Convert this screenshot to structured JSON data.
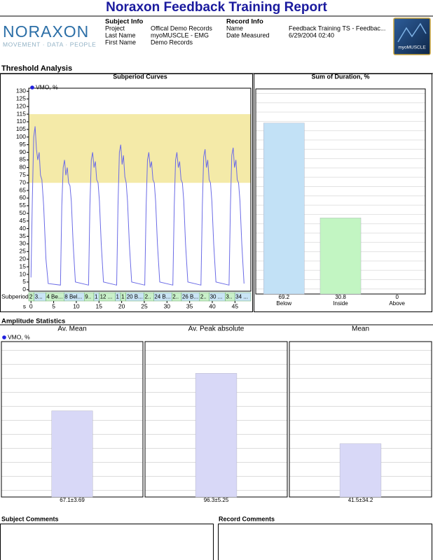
{
  "header": {
    "title": "Noraxon Feedback Training Report",
    "logo": "NORAXON",
    "tagline": "MOVEMENT · DATA · PEOPLE",
    "badge": "myoMUSCLE"
  },
  "subject_info": {
    "title": "Subject Info",
    "rows": [
      [
        "Project",
        "Offical Demo Records"
      ],
      [
        "Last Name",
        "myoMUSCLE - EMG"
      ],
      [
        "First Name",
        "Demo Records"
      ]
    ]
  },
  "record_info": {
    "title": "Record Info",
    "rows": [
      [
        "Name",
        "Feedback Training TS -  Feedbac..."
      ],
      [
        "Date Measured",
        "6/29/2004 02:40"
      ]
    ]
  },
  "sections": {
    "threshold": "Threshold Analysis",
    "amplitude": "Amplitude Statistics"
  },
  "comments": [
    "Subject Comments",
    "Record Comments"
  ],
  "chart_data": [
    {
      "type": "line",
      "title": "Subperiod Curves",
      "x": [
        0,
        0.3,
        0.6,
        0.9,
        1.2,
        1.5,
        1.8,
        2.1,
        2.4,
        2.8,
        3.3,
        3.8,
        6.5,
        6.8,
        7.1,
        7.4,
        7.7,
        8.0,
        8.3,
        8.6,
        8.9,
        9.3,
        9.8,
        12.7,
        13.0,
        13.3,
        13.6,
        13.9,
        14.2,
        14.5,
        14.8,
        15.1,
        15.5,
        16.0,
        18.9,
        19.2,
        19.5,
        19.8,
        20.1,
        20.4,
        20.7,
        21.0,
        21.3,
        21.7,
        22.2,
        25.1,
        25.4,
        25.7,
        26.0,
        26.3,
        26.6,
        26.9,
        27.2,
        27.5,
        27.9,
        28.4,
        31.3,
        31.6,
        31.9,
        32.2,
        32.5,
        32.8,
        33.1,
        33.4,
        33.7,
        34.1,
        34.6,
        37.5,
        37.8,
        38.1,
        38.4,
        38.7,
        39.0,
        39.3,
        39.6,
        39.9,
        40.3,
        40.8,
        43.7,
        44.0,
        44.3,
        44.6,
        44.9,
        45.2,
        45.5,
        45.8,
        46.1,
        46.5,
        47.0
      ],
      "series": [
        {
          "name": "VMO, %",
          "color": "#6b6be6",
          "values": [
            8,
            60,
            100,
            107,
            92,
            85,
            90,
            75,
            72,
            55,
            20,
            4,
            3,
            55,
            80,
            85,
            75,
            80,
            70,
            68,
            58,
            30,
            5,
            3,
            55,
            85,
            90,
            80,
            84,
            72,
            70,
            58,
            30,
            5,
            3,
            55,
            90,
            95,
            82,
            88,
            74,
            70,
            58,
            30,
            5,
            3,
            55,
            85,
            90,
            80,
            84,
            72,
            70,
            58,
            30,
            5,
            3,
            55,
            85,
            90,
            80,
            84,
            72,
            70,
            58,
            30,
            5,
            3,
            55,
            87,
            92,
            80,
            85,
            72,
            70,
            58,
            30,
            5,
            3,
            55,
            88,
            93,
            80,
            85,
            72,
            70,
            58,
            30,
            4
          ]
        }
      ],
      "legend_color": "#2020dd",
      "xlim": [
        -0.5,
        48.5
      ],
      "ylim": [
        -1,
        132
      ],
      "xticks": [
        0,
        5,
        10,
        15,
        20,
        25,
        30,
        35,
        40,
        45
      ],
      "yticks": [
        0,
        5,
        10,
        15,
        20,
        25,
        30,
        35,
        40,
        45,
        50,
        55,
        60,
        65,
        70,
        75,
        80,
        85,
        90,
        95,
        100,
        105,
        110,
        115,
        120,
        125,
        130
      ],
      "xlabel": "s",
      "band": [
        70,
        115
      ],
      "band_color": "#f4eaa8",
      "subperiods_label": "Subperiods",
      "subperiods": [
        "2",
        "3...",
        "4 Be...",
        "8 Bel...",
        "9..",
        "1",
        "12 ...",
        "1",
        "1",
        "20 B...",
        "2..",
        "24 B...",
        "2..",
        "26 B...",
        "2..",
        "30 ...",
        "3..",
        "34 ..."
      ],
      "subperiod_colors": [
        "#c9f0c9",
        "#c9e4f5"
      ]
    },
    {
      "type": "bar",
      "title": "Sum of Duration, %",
      "categories": [
        "Below",
        "Inside",
        "Above"
      ],
      "values": [
        69.2,
        30.8,
        0
      ],
      "colors": [
        "#c2e1f6",
        "#c2f5c2",
        "#f5c2c2"
      ],
      "ylim": [
        0,
        83
      ]
    },
    {
      "type": "bar",
      "title": "Av. Mean",
      "legend": {
        "name": "VMO, %",
        "color": "#2020dd"
      },
      "values": [
        67.1
      ],
      "value_labels": [
        "67.1±3.69"
      ],
      "color": "#d8d8f7",
      "ylim": [
        0,
        121
      ]
    },
    {
      "type": "bar",
      "title": "Av. Peak absolute",
      "values": [
        96.3
      ],
      "value_labels": [
        "96.3±5.25"
      ],
      "color": "#d8d8f7",
      "ylim": [
        0,
        121
      ]
    },
    {
      "type": "bar",
      "title": "Mean",
      "values": [
        41.5
      ],
      "value_labels": [
        "41.5±34.2"
      ],
      "color": "#d8d8f7",
      "ylim": [
        0,
        121
      ]
    }
  ]
}
